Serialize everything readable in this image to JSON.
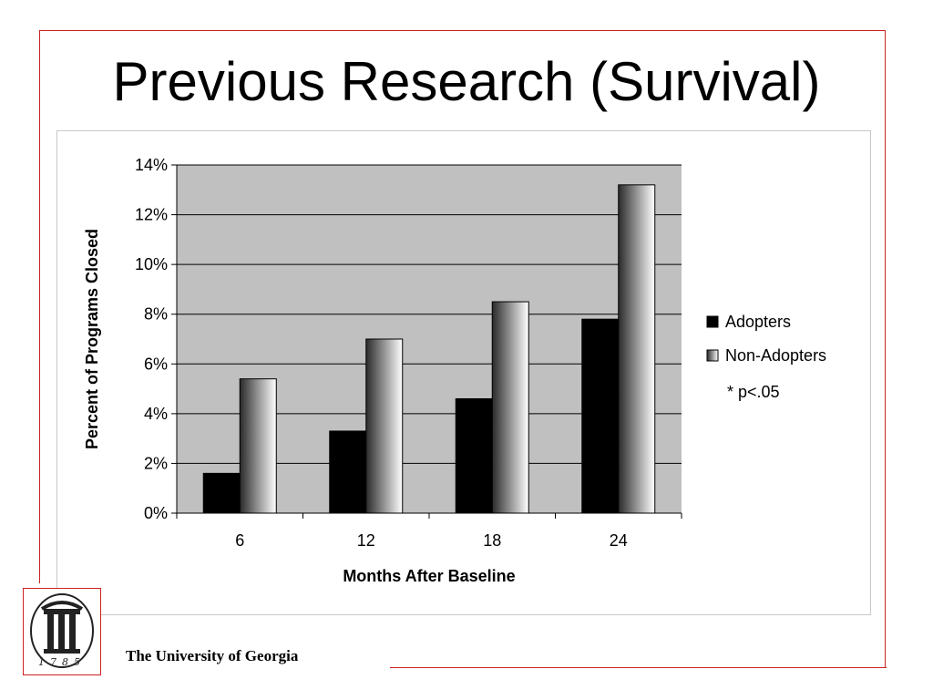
{
  "slide": {
    "title": "Previous Research (Survival)",
    "footer": "The University of Georgia",
    "logo_year": "1785"
  },
  "colors": {
    "frame": "#cc2222",
    "plot_background": "#c0c0c0",
    "adopters": "#000000",
    "non_adopters_dark": "#2a2a2a",
    "non_adopters_light": "#ffffff"
  },
  "chart_data": {
    "type": "bar",
    "categories": [
      "6",
      "12",
      "18",
      "24"
    ],
    "series": [
      {
        "name": "Adopters",
        "values": [
          1.6,
          3.3,
          4.6,
          7.8
        ]
      },
      {
        "name": "Non-Adopters",
        "values": [
          5.4,
          7.0,
          8.5,
          13.2
        ]
      }
    ],
    "title": "",
    "xlabel": "Months After Baseline",
    "ylabel": "Percent of Programs Closed",
    "ylim": [
      0,
      14
    ],
    "yticks": [
      "0%",
      "2%",
      "4%",
      "6%",
      "8%",
      "10%",
      "12%",
      "14%"
    ],
    "grid": true,
    "legend_position": "right",
    "annotation": "* p<.05"
  }
}
